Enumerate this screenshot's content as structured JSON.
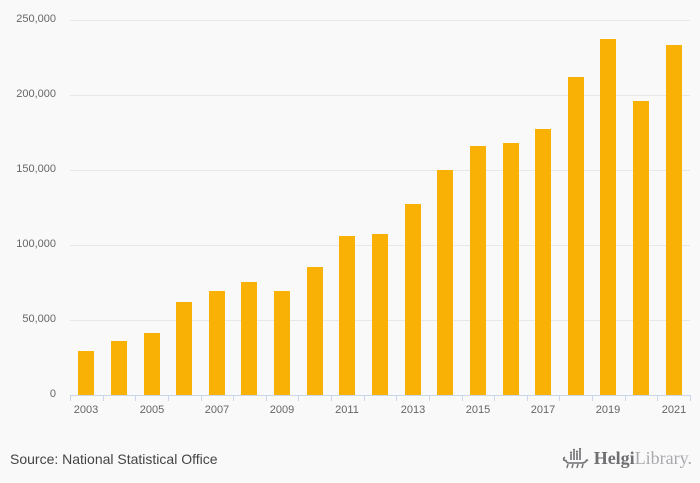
{
  "chart_data": {
    "type": "bar",
    "title": "",
    "xlabel": "",
    "ylabel": "",
    "categories": [
      "2003",
      "2004",
      "2005",
      "2006",
      "2007",
      "2008",
      "2009",
      "2010",
      "2011",
      "2012",
      "2013",
      "2014",
      "2015",
      "2016",
      "2017",
      "2018",
      "2019",
      "2020",
      "2021"
    ],
    "values": [
      29000,
      36000,
      41000,
      62000,
      69000,
      75000,
      69000,
      85000,
      106000,
      107000,
      127000,
      150000,
      166000,
      168000,
      177000,
      212000,
      237000,
      196000,
      233000
    ],
    "ylim": [
      0,
      250000
    ],
    "yticks": [
      {
        "value": 0,
        "label": "0"
      },
      {
        "value": 50000,
        "label": "50,000"
      },
      {
        "value": 100000,
        "label": "100,000"
      },
      {
        "value": 150000,
        "label": "150,000"
      },
      {
        "value": 200000,
        "label": "200,000"
      },
      {
        "value": 250000,
        "label": "250,000"
      }
    ],
    "xtick_labels_shown": [
      "2003",
      "2005",
      "2007",
      "2009",
      "2011",
      "2013",
      "2015",
      "2017",
      "2019",
      "2021"
    ],
    "grid": "horizontal",
    "legend": "none",
    "bar_color": "#FAB105"
  },
  "colors": {
    "background": "#f9f9f9",
    "gridline": "#e8e8e8",
    "axis": "#ccd6eb",
    "axis_label": "#666666",
    "bar": "#FAB105"
  },
  "footer": {
    "source": "Source: National Statistical Office",
    "logo_brand_primary": "Helgi",
    "logo_brand_secondary": "Library."
  }
}
